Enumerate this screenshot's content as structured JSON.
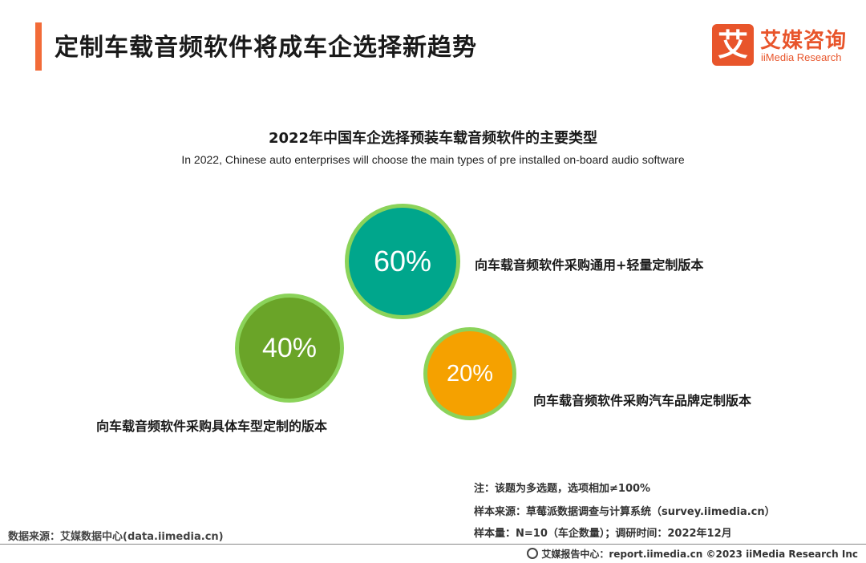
{
  "header": {
    "title": "定制车载音频软件将成车企选择新趋势",
    "logo_mark": "艾",
    "logo_cn": "艾媒咨询",
    "logo_en": "iiMedia Research"
  },
  "chart_data": {
    "type": "bubble",
    "title": "2022年中国车企选择预装车载音频软件的主要类型",
    "subtitle": "In 2022, Chinese auto enterprises will choose the main types of pre installed on-board audio software",
    "items": [
      {
        "label": "向车载音频软件采购通用+轻量定制版本",
        "value": 60,
        "display": "60%",
        "color": "#00a68c"
      },
      {
        "label": "向车载音频软件采购具体车型定制的版本",
        "value": 40,
        "display": "40%",
        "color": "#6aa428"
      },
      {
        "label": "向车载音频软件采购汽车品牌定制版本",
        "value": 20,
        "display": "20%",
        "color": "#f5a100"
      }
    ],
    "ring_color": "#8bd35a"
  },
  "notes": {
    "note": "注：该题为多选题，选项相加≠100%",
    "sample_source": "样本来源：草莓派数据调查与计算系统（survey.iimedia.cn）",
    "sample_size": "样本量：N=10（车企数量）；调研时间：2022年12月"
  },
  "source": "数据来源：艾媒数据中心(data.iimedia.cn)",
  "footer": "艾媒报告中心：report.iimedia.cn  ©2023  iiMedia Research  Inc"
}
